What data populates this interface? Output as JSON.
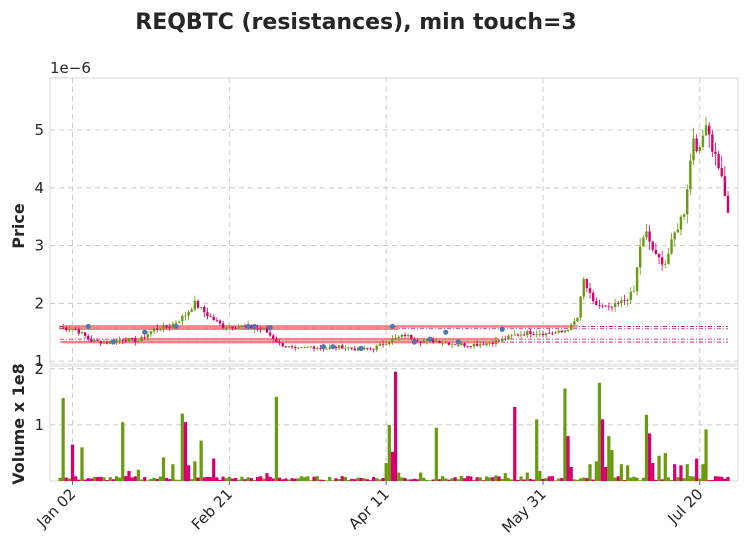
{
  "chart_data": {
    "type": "candlestick",
    "title": "REQBTC (resistances), min touch=3",
    "colors": {
      "up": "#6a9a0e",
      "down": "#d5006d",
      "resistance_line": "#f08080",
      "touch_marker": "#4a7ab5",
      "grid": "#cccccc"
    },
    "price_panel": {
      "ylabel": "Price",
      "scale_label": "1e−6",
      "ylim": [
        0.95,
        5.9
      ],
      "yticks": [
        1,
        2,
        3,
        4,
        5
      ],
      "ytick_labels": [
        "1",
        "2",
        "3",
        "4",
        "5"
      ],
      "grid": true
    },
    "volume_panel": {
      "ylabel": "Volume x 1e8",
      "ylim": [
        0,
        2.05
      ],
      "yticks": [
        1,
        2
      ],
      "ytick_labels": [
        "1",
        "2"
      ],
      "grid": true
    },
    "x_ticks": {
      "days": [
        4,
        54,
        104,
        154,
        204
      ],
      "labels": [
        "Jan 02",
        "Feb 21",
        "Apr 11",
        "May 31",
        "Jul 20"
      ]
    },
    "total_days": 214,
    "price_anchors": [
      [
        0,
        1.58
      ],
      [
        5,
        1.55
      ],
      [
        10,
        1.35
      ],
      [
        15,
        1.32
      ],
      [
        20,
        1.38
      ],
      [
        25,
        1.35
      ],
      [
        30,
        1.55
      ],
      [
        35,
        1.6
      ],
      [
        40,
        1.8
      ],
      [
        43,
        2.0
      ],
      [
        47,
        1.8
      ],
      [
        52,
        1.6
      ],
      [
        58,
        1.6
      ],
      [
        65,
        1.55
      ],
      [
        70,
        1.3
      ],
      [
        75,
        1.2
      ],
      [
        80,
        1.25
      ],
      [
        85,
        1.22
      ],
      [
        90,
        1.25
      ],
      [
        95,
        1.2
      ],
      [
        100,
        1.22
      ],
      [
        105,
        1.35
      ],
      [
        110,
        1.45
      ],
      [
        115,
        1.35
      ],
      [
        120,
        1.35
      ],
      [
        125,
        1.3
      ],
      [
        130,
        1.28
      ],
      [
        135,
        1.3
      ],
      [
        140,
        1.35
      ],
      [
        145,
        1.45
      ],
      [
        150,
        1.5
      ],
      [
        155,
        1.48
      ],
      [
        160,
        1.5
      ],
      [
        163,
        1.6
      ],
      [
        165,
        1.75
      ],
      [
        167,
        2.4
      ],
      [
        170,
        2.0
      ],
      [
        175,
        1.9
      ],
      [
        180,
        2.05
      ],
      [
        183,
        2.2
      ],
      [
        185,
        3.0
      ],
      [
        187,
        3.2
      ],
      [
        190,
        2.8
      ],
      [
        193,
        2.7
      ],
      [
        196,
        3.2
      ],
      [
        199,
        3.6
      ],
      [
        202,
        4.9
      ],
      [
        204,
        4.6
      ],
      [
        206,
        5.2
      ],
      [
        208,
        4.7
      ],
      [
        210,
        4.4
      ],
      [
        212,
        3.9
      ],
      [
        213,
        3.5
      ]
    ],
    "volume_spikes": [
      [
        1,
        1.48,
        "up"
      ],
      [
        4,
        0.65,
        "down"
      ],
      [
        7,
        0.6,
        "up"
      ],
      [
        20,
        1.05,
        "up"
      ],
      [
        22,
        0.18,
        "down"
      ],
      [
        25,
        0.2,
        "up"
      ],
      [
        33,
        0.42,
        "up"
      ],
      [
        36,
        0.3,
        "up"
      ],
      [
        39,
        1.2,
        "up"
      ],
      [
        40,
        1.05,
        "down"
      ],
      [
        41,
        0.28,
        "down"
      ],
      [
        43,
        0.35,
        "up"
      ],
      [
        45,
        0.72,
        "up"
      ],
      [
        49,
        0.4,
        "down"
      ],
      [
        66,
        0.14,
        "down"
      ],
      [
        69,
        1.5,
        "up"
      ],
      [
        104,
        0.32,
        "up"
      ],
      [
        105,
        1.0,
        "up"
      ],
      [
        106,
        0.52,
        "down"
      ],
      [
        107,
        1.95,
        "down"
      ],
      [
        108,
        0.15,
        "up"
      ],
      [
        115,
        0.15,
        "up"
      ],
      [
        120,
        0.95,
        "up"
      ],
      [
        139,
        0.1,
        "up"
      ],
      [
        142,
        0.14,
        "up"
      ],
      [
        145,
        1.32,
        "down"
      ],
      [
        149,
        0.15,
        "up"
      ],
      [
        152,
        1.1,
        "up"
      ],
      [
        153,
        0.18,
        "up"
      ],
      [
        161,
        1.65,
        "up"
      ],
      [
        162,
        0.8,
        "down"
      ],
      [
        163,
        0.25,
        "down"
      ],
      [
        169,
        0.3,
        "up"
      ],
      [
        171,
        0.35,
        "up"
      ],
      [
        172,
        1.75,
        "up"
      ],
      [
        173,
        1.1,
        "down"
      ],
      [
        174,
        0.25,
        "down"
      ],
      [
        175,
        0.8,
        "up"
      ],
      [
        176,
        0.55,
        "up"
      ],
      [
        179,
        0.3,
        "up"
      ],
      [
        181,
        0.28,
        "up"
      ],
      [
        187,
        1.18,
        "up"
      ],
      [
        188,
        0.85,
        "down"
      ],
      [
        189,
        0.32,
        "down"
      ],
      [
        191,
        0.45,
        "up"
      ],
      [
        193,
        0.5,
        "up"
      ],
      [
        196,
        0.3,
        "down"
      ],
      [
        198,
        0.28,
        "down"
      ],
      [
        200,
        0.3,
        "up"
      ],
      [
        203,
        0.4,
        "down"
      ],
      [
        205,
        0.3,
        "up"
      ],
      [
        206,
        0.92,
        "up"
      ]
    ],
    "resistance_levels": [
      1.6,
      1.56,
      1.38,
      1.33
    ],
    "resistance_segments": [
      [
        1.6,
        1,
        165
      ],
      [
        1.56,
        1,
        108
      ],
      [
        1.38,
        20,
        140
      ],
      [
        1.33,
        1,
        140
      ]
    ],
    "touch_points": [
      [
        9,
        1.6
      ],
      [
        17,
        1.33
      ],
      [
        27,
        1.5
      ],
      [
        37,
        1.6
      ],
      [
        60,
        1.6
      ],
      [
        62,
        1.6
      ],
      [
        67,
        1.58
      ],
      [
        84,
        1.25
      ],
      [
        87,
        1.25
      ],
      [
        96,
        1.22
      ],
      [
        106,
        1.6
      ],
      [
        113,
        1.33
      ],
      [
        118,
        1.38
      ],
      [
        123,
        1.5
      ],
      [
        127,
        1.33
      ],
      [
        141,
        1.55
      ]
    ]
  }
}
